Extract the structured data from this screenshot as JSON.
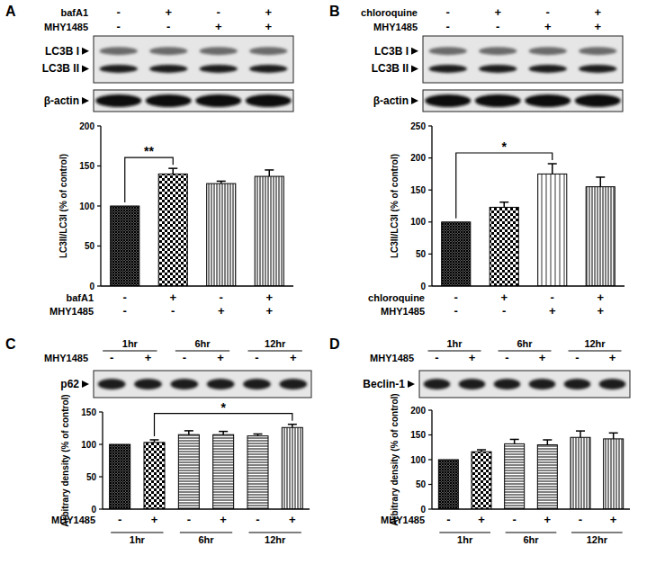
{
  "chart_data": [
    {
      "type": "bar",
      "panel": "A",
      "y_label": "LC3II/LC3I (% of control)",
      "categories": [
        null,
        null,
        null,
        null
      ],
      "values": [
        100,
        140,
        128,
        137
      ],
      "errors": [
        0,
        7,
        3,
        8
      ],
      "color": "#000000",
      "ylim": [
        0,
        200
      ],
      "yticks": [
        0,
        50,
        100,
        150,
        200
      ],
      "conditions": [
        {
          "label": "bafA1",
          "signs": [
            "-",
            "+",
            "-",
            "+"
          ]
        },
        {
          "label": "MHY1485",
          "signs": [
            "-",
            "-",
            "+",
            "+"
          ]
        }
      ],
      "blot": {
        "bands": [
          "LC3B I",
          "LC3B II"
        ],
        "loading": "β-actin"
      },
      "significance": [
        {
          "from": 0,
          "to": 1,
          "label": "**"
        }
      ]
    },
    {
      "type": "bar",
      "panel": "B",
      "y_label": "LC3II/LC3I (% of control)",
      "categories": [
        null,
        null,
        null,
        null
      ],
      "values": [
        100,
        123,
        175,
        155
      ],
      "errors": [
        0,
        8,
        16,
        15
      ],
      "color": "#000000",
      "ylim": [
        0,
        250
      ],
      "yticks": [
        0,
        50,
        100,
        150,
        200,
        250
      ],
      "conditions": [
        {
          "label": "chloroquine",
          "signs": [
            "-",
            "+",
            "-",
            "+"
          ]
        },
        {
          "label": "MHY1485",
          "signs": [
            "-",
            "-",
            "+",
            "+"
          ]
        }
      ],
      "blot": {
        "bands": [
          "LC3B I",
          "LC3B II"
        ],
        "loading": "β-actin"
      },
      "significance": [
        {
          "from": 0,
          "to": 2,
          "label": "*"
        }
      ]
    },
    {
      "type": "bar",
      "panel": "C",
      "y_label": "Arbitrary density (% of control)",
      "categories": [
        null,
        null,
        null,
        null,
        null,
        null
      ],
      "values": [
        100,
        103,
        115,
        115,
        113,
        126
      ],
      "errors": [
        0,
        4,
        6,
        5,
        3,
        5
      ],
      "color": "#000000",
      "ylim": [
        0,
        150
      ],
      "yticks": [
        0,
        50,
        100,
        150
      ],
      "groups": [
        "1hr",
        "6hr",
        "12hr"
      ],
      "conditions": [
        {
          "label": "MHY1485",
          "signs": [
            "-",
            "+",
            "-",
            "+",
            "-",
            "+"
          ]
        }
      ],
      "blot": {
        "bands": [
          "p62"
        ]
      },
      "significance": [
        {
          "from": 1,
          "to": 5,
          "label": "*"
        }
      ]
    },
    {
      "type": "bar",
      "panel": "D",
      "y_label": "Arbitrary density (% of control)",
      "categories": [
        null,
        null,
        null,
        null,
        null,
        null
      ],
      "values": [
        100,
        116,
        132,
        130,
        145,
        142
      ],
      "errors": [
        0,
        4,
        9,
        10,
        13,
        12
      ],
      "color": "#000000",
      "ylim": [
        0,
        200
      ],
      "yticks": [
        0,
        50,
        100,
        150,
        200
      ],
      "groups": [
        "1hr",
        "6hr",
        "12hr"
      ],
      "conditions": [
        {
          "label": "MHY1485",
          "signs": [
            "-",
            "+",
            "-",
            "+",
            "-",
            "+"
          ]
        }
      ],
      "blot": {
        "bands": [
          "Beclin-1"
        ]
      },
      "significance": []
    }
  ]
}
